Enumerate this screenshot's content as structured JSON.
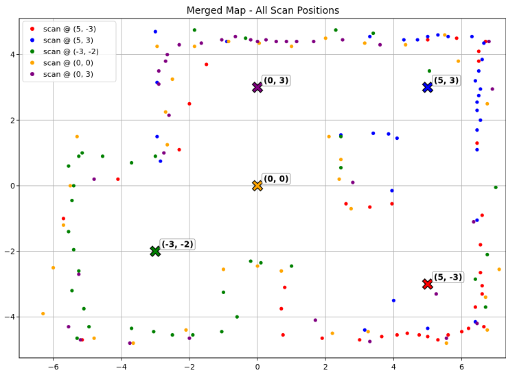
{
  "chart_data": {
    "type": "scatter",
    "title": "Merged Map - All Scan Positions",
    "xlabel": "",
    "ylabel": "",
    "xlim": [
      -7.0,
      7.3
    ],
    "ylim": [
      -5.25,
      5.1
    ],
    "xticks": [
      -6,
      -4,
      -2,
      0,
      2,
      4,
      6
    ],
    "yticks": [
      -4,
      -2,
      0,
      2,
      4
    ],
    "grid": true,
    "legend_position": "top-left",
    "series": [
      {
        "name": "scan @ (5, -3)",
        "color": "#ff0000",
        "points": [
          [
            -5.7,
            -1.0
          ],
          [
            -4.1,
            0.2
          ],
          [
            -2.3,
            1.1
          ],
          [
            -2.0,
            2.5
          ],
          [
            -1.5,
            3.7
          ],
          [
            0.7,
            -3.75
          ],
          [
            0.75,
            -4.55
          ],
          [
            0.8,
            -3.1
          ],
          [
            1.9,
            -4.65
          ],
          [
            2.6,
            -0.55
          ],
          [
            3.0,
            -4.7
          ],
          [
            3.3,
            -0.65
          ],
          [
            3.65,
            -4.6
          ],
          [
            3.95,
            -0.55
          ],
          [
            4.1,
            -4.55
          ],
          [
            4.4,
            -4.5
          ],
          [
            4.75,
            -4.55
          ],
          [
            5.0,
            -4.6
          ],
          [
            5.3,
            -4.7
          ],
          [
            5.6,
            -4.55
          ],
          [
            5.0,
            4.45
          ],
          [
            5.85,
            4.5
          ],
          [
            6.0,
            -4.45
          ],
          [
            6.2,
            -4.35
          ],
          [
            6.4,
            -3.7
          ],
          [
            6.45,
            1.3
          ],
          [
            6.5,
            4.1
          ],
          [
            6.5,
            3.8
          ],
          [
            6.55,
            -1.8
          ],
          [
            6.55,
            -2.65
          ],
          [
            6.6,
            -0.9
          ],
          [
            6.6,
            -3.05
          ],
          [
            6.6,
            -3.3
          ],
          [
            6.65,
            -4.3
          ],
          [
            6.7,
            4.4
          ],
          [
            -5.15,
            -4.7
          ]
        ]
      },
      {
        "name": "scan @ (5, 3)",
        "color": "#0000ff",
        "points": [
          [
            -3.0,
            4.7
          ],
          [
            -2.95,
            3.15
          ],
          [
            -2.95,
            1.5
          ],
          [
            -2.85,
            0.75
          ],
          [
            -0.9,
            4.4
          ],
          [
            2.45,
            1.55
          ],
          [
            3.15,
            -4.4
          ],
          [
            3.4,
            1.6
          ],
          [
            3.85,
            1.58
          ],
          [
            3.95,
            -0.15
          ],
          [
            4.0,
            -3.5
          ],
          [
            4.1,
            1.45
          ],
          [
            4.3,
            4.45
          ],
          [
            4.7,
            4.45
          ],
          [
            5.0,
            4.55
          ],
          [
            5.0,
            -4.35
          ],
          [
            5.3,
            4.6
          ],
          [
            5.6,
            4.55
          ],
          [
            6.3,
            4.55
          ],
          [
            6.4,
            -4.15
          ],
          [
            6.4,
            3.2
          ],
          [
            6.45,
            2.3
          ],
          [
            6.45,
            2.55
          ],
          [
            6.45,
            1.7
          ],
          [
            6.45,
            1.1
          ],
          [
            6.45,
            -1.05
          ],
          [
            6.5,
            2.75
          ],
          [
            6.5,
            3.5
          ],
          [
            6.55,
            2.0
          ],
          [
            6.55,
            2.95
          ],
          [
            6.6,
            3.85
          ],
          [
            6.65,
            4.35
          ],
          [
            3.3,
            4.55
          ]
        ]
      },
      {
        "name": "scan @ (-3, -2)",
        "color": "#008000",
        "points": [
          [
            -5.55,
            0.6
          ],
          [
            -5.55,
            -1.4
          ],
          [
            -5.45,
            -3.2
          ],
          [
            -5.45,
            -0.45
          ],
          [
            -5.4,
            -1.95
          ],
          [
            -5.4,
            0.0
          ],
          [
            -5.3,
            -4.65
          ],
          [
            -5.25,
            0.9
          ],
          [
            -5.25,
            -2.6
          ],
          [
            -5.15,
            1.0
          ],
          [
            -5.1,
            -3.75
          ],
          [
            -4.95,
            -4.3
          ],
          [
            -4.55,
            0.9
          ],
          [
            -3.7,
            0.7
          ],
          [
            -3.7,
            -4.35
          ],
          [
            -3.05,
            -4.45
          ],
          [
            -3.0,
            0.9
          ],
          [
            -2.5,
            -4.55
          ],
          [
            -1.9,
            -4.55
          ],
          [
            -1.85,
            4.75
          ],
          [
            -1.0,
            -3.25
          ],
          [
            -1.05,
            -4.45
          ],
          [
            -0.6,
            -4.0
          ],
          [
            -0.35,
            4.5
          ],
          [
            -0.2,
            -2.3
          ],
          [
            0.1,
            -2.35
          ],
          [
            1.0,
            -2.45
          ],
          [
            2.3,
            4.75
          ],
          [
            2.45,
            0.55
          ],
          [
            2.45,
            1.5
          ],
          [
            3.4,
            4.65
          ],
          [
            5.05,
            3.5
          ],
          [
            6.4,
            -2.85
          ],
          [
            6.7,
            -3.7
          ],
          [
            6.75,
            -2.1
          ],
          [
            7.0,
            -0.05
          ]
        ]
      },
      {
        "name": "scan @ (0, 0)",
        "color": "#ffa500",
        "points": [
          [
            -6.3,
            -3.9
          ],
          [
            -6.0,
            -2.5
          ],
          [
            -5.7,
            -1.2
          ],
          [
            -5.5,
            0.0
          ],
          [
            -5.3,
            1.5
          ],
          [
            -4.8,
            -4.65
          ],
          [
            -3.65,
            -4.8
          ],
          [
            -2.95,
            4.25
          ],
          [
            -2.7,
            2.25
          ],
          [
            -2.65,
            1.25
          ],
          [
            -2.5,
            3.25
          ],
          [
            -2.1,
            -4.4
          ],
          [
            -1.85,
            4.25
          ],
          [
            -1.0,
            -2.55
          ],
          [
            -0.85,
            4.4
          ],
          [
            0.0,
            -2.45
          ],
          [
            0.05,
            4.35
          ],
          [
            0.7,
            -2.6
          ],
          [
            1.0,
            4.25
          ],
          [
            2.0,
            4.5
          ],
          [
            2.1,
            1.5
          ],
          [
            2.2,
            -4.5
          ],
          [
            2.4,
            0.2
          ],
          [
            2.45,
            0.8
          ],
          [
            2.75,
            -0.7
          ],
          [
            3.15,
            4.35
          ],
          [
            3.25,
            -4.45
          ],
          [
            4.35,
            4.3
          ],
          [
            5.5,
            4.6
          ],
          [
            5.55,
            -4.8
          ],
          [
            5.9,
            3.8
          ],
          [
            6.7,
            -3.4
          ],
          [
            6.75,
            2.5
          ],
          [
            7.1,
            -2.55
          ],
          [
            6.75,
            -4.4
          ]
        ]
      },
      {
        "name": "scan @ (0, 3)",
        "color": "#800080",
        "points": [
          [
            -5.55,
            -4.3
          ],
          [
            -5.25,
            -2.7
          ],
          [
            -5.2,
            -4.7
          ],
          [
            -4.8,
            0.2
          ],
          [
            -3.75,
            -4.8
          ],
          [
            -2.9,
            3.1
          ],
          [
            -2.9,
            3.5
          ],
          [
            -2.75,
            1.0
          ],
          [
            -2.7,
            3.8
          ],
          [
            -2.65,
            4.0
          ],
          [
            -2.6,
            2.15
          ],
          [
            -2.3,
            4.3
          ],
          [
            -2.0,
            -4.65
          ],
          [
            -1.65,
            4.35
          ],
          [
            -1.05,
            4.45
          ],
          [
            -0.65,
            4.55
          ],
          [
            -0.2,
            4.45
          ],
          [
            0.0,
            4.4
          ],
          [
            0.25,
            4.45
          ],
          [
            0.55,
            4.4
          ],
          [
            0.85,
            4.4
          ],
          [
            1.15,
            4.4
          ],
          [
            1.65,
            4.4
          ],
          [
            1.7,
            -4.1
          ],
          [
            2.5,
            4.45
          ],
          [
            2.8,
            0.1
          ],
          [
            3.6,
            4.3
          ],
          [
            3.3,
            -4.75
          ],
          [
            5.25,
            -3.3
          ],
          [
            5.55,
            -4.65
          ],
          [
            6.35,
            -1.1
          ],
          [
            6.45,
            -4.2
          ],
          [
            6.9,
            2.95
          ],
          [
            6.8,
            4.4
          ]
        ]
      }
    ],
    "markers": [
      {
        "label": "(0, 3)",
        "x": 0,
        "y": 3,
        "color": "#800080"
      },
      {
        "label": "(5, 3)",
        "x": 5,
        "y": 3,
        "color": "#0000ff"
      },
      {
        "label": "(0, 0)",
        "x": 0,
        "y": 0,
        "color": "#ffa500"
      },
      {
        "label": "(-3, -2)",
        "x": -3,
        "y": -2,
        "color": "#008000"
      },
      {
        "label": "(5, -3)",
        "x": 5,
        "y": -3,
        "color": "#ff0000"
      }
    ]
  }
}
